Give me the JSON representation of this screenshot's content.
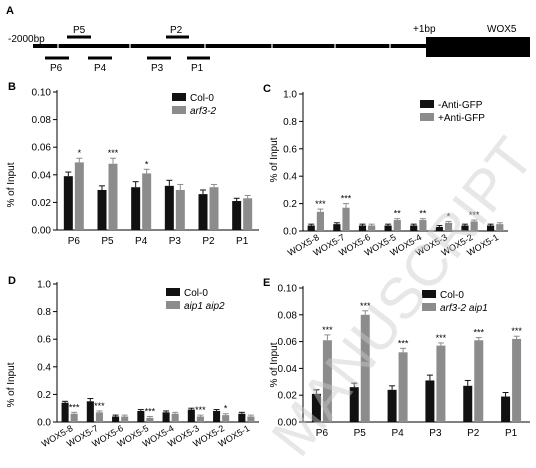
{
  "colors": {
    "black": "#111111",
    "grey": "#8c8c8c",
    "watermark": "#c9c9c9"
  },
  "watermark": "MANUSCRIPT",
  "panel_a": {
    "letter": "A",
    "left_label": "-2000bp",
    "tss_label": "+1bp",
    "gene_label": "WOX5",
    "primers_above": [
      "P5",
      "P2"
    ],
    "primers_below": [
      "P6",
      "P4",
      "P3",
      "P1"
    ]
  },
  "chart_data": [
    {
      "panel": "B",
      "type": "bar",
      "ylabel": "% of Input",
      "ylim": [
        0,
        0.1
      ],
      "yticks": [
        "0.00",
        "0.02",
        "0.04",
        "0.06",
        "0.08",
        "0.10"
      ],
      "categories": [
        "P6",
        "P5",
        "P4",
        "P3",
        "P2",
        "P1"
      ],
      "series": [
        {
          "name": "Col-0",
          "color": "black",
          "values": [
            0.039,
            0.029,
            0.031,
            0.032,
            0.026,
            0.021
          ],
          "errors": [
            0.003,
            0.003,
            0.004,
            0.004,
            0.003,
            0.002
          ]
        },
        {
          "name": "arf3-2",
          "color": "grey",
          "values": [
            0.049,
            0.048,
            0.041,
            0.029,
            0.031,
            0.023
          ],
          "errors": [
            0.003,
            0.004,
            0.003,
            0.004,
            0.002,
            0.002
          ]
        }
      ],
      "significance": [
        "*",
        "***",
        "*",
        "",
        "",
        ""
      ],
      "legend_position": "top-right",
      "italic_series": [
        false,
        true
      ]
    },
    {
      "panel": "C",
      "type": "bar",
      "ylabel": "% of Input",
      "ylim": [
        0,
        1.0
      ],
      "yticks": [
        "0.0",
        "0.2",
        "0.4",
        "0.6",
        "0.8",
        "1.0"
      ],
      "categories": [
        "WOX5-8",
        "WOX5-7",
        "WOX5-6",
        "WOX5-5",
        "WOX5-4",
        "WOX5-3",
        "WOX5-2",
        "WOX5-1"
      ],
      "series": [
        {
          "name": "-Anti-GFP",
          "color": "black",
          "values": [
            0.04,
            0.05,
            0.04,
            0.04,
            0.04,
            0.03,
            0.04,
            0.04
          ],
          "errors": [
            0.01,
            0.01,
            0.01,
            0.01,
            0.01,
            0.01,
            0.01,
            0.01
          ]
        },
        {
          "name": "+Anti-GFP",
          "color": "grey",
          "values": [
            0.14,
            0.17,
            0.04,
            0.08,
            0.08,
            0.06,
            0.07,
            0.05
          ],
          "errors": [
            0.02,
            0.03,
            0.01,
            0.01,
            0.01,
            0.01,
            0.01,
            0.01
          ]
        }
      ],
      "significance": [
        "***",
        "***",
        "",
        "**",
        "**",
        "*",
        "***",
        ""
      ],
      "legend_position": "top-right",
      "italic_series": [
        false,
        false
      ]
    },
    {
      "panel": "D",
      "type": "bar",
      "ylabel": "% of Input",
      "ylim": [
        0,
        1.0
      ],
      "yticks": [
        "0.0",
        "0.2",
        "0.4",
        "0.6",
        "0.8",
        "1.0"
      ],
      "categories": [
        "WOX5-8",
        "WOX5-7",
        "WOX5-6",
        "WOX5-5",
        "WOX5-4",
        "WOX5-3",
        "WOX5-2",
        "WOX5-1"
      ],
      "series": [
        {
          "name": "Col-0",
          "color": "black",
          "values": [
            0.14,
            0.15,
            0.04,
            0.08,
            0.07,
            0.09,
            0.08,
            0.06
          ],
          "errors": [
            0.01,
            0.02,
            0.01,
            0.01,
            0.01,
            0.01,
            0.01,
            0.01
          ]
        },
        {
          "name": "aip1 aip2",
          "color": "grey",
          "values": [
            0.06,
            0.07,
            0.04,
            0.03,
            0.06,
            0.04,
            0.05,
            0.04
          ],
          "errors": [
            0.01,
            0.01,
            0.01,
            0.01,
            0.01,
            0.01,
            0.01,
            0.01
          ]
        }
      ],
      "significance": [
        "***",
        "***",
        "",
        "***",
        "",
        "***",
        "*",
        ""
      ],
      "legend_position": "top-right",
      "italic_series": [
        false,
        true
      ]
    },
    {
      "panel": "E",
      "type": "bar",
      "ylabel": "% of Input",
      "ylim": [
        0,
        0.1
      ],
      "yticks": [
        "0.00",
        "0.02",
        "0.04",
        "0.06",
        "0.08",
        "0.10"
      ],
      "categories": [
        "P6",
        "P5",
        "P4",
        "P3",
        "P2",
        "P1"
      ],
      "series": [
        {
          "name": "Col-0",
          "color": "black",
          "values": [
            0.021,
            0.026,
            0.024,
            0.031,
            0.027,
            0.019
          ],
          "errors": [
            0.003,
            0.003,
            0.003,
            0.004,
            0.004,
            0.003
          ]
        },
        {
          "name": "arf3-2 aip1",
          "color": "grey",
          "values": [
            0.061,
            0.08,
            0.052,
            0.057,
            0.061,
            0.062
          ],
          "errors": [
            0.004,
            0.003,
            0.003,
            0.002,
            0.002,
            0.002
          ]
        }
      ],
      "significance": [
        "***",
        "***",
        "***",
        "***",
        "***",
        "***"
      ],
      "legend_position": "top-left",
      "italic_series": [
        false,
        true
      ]
    }
  ]
}
